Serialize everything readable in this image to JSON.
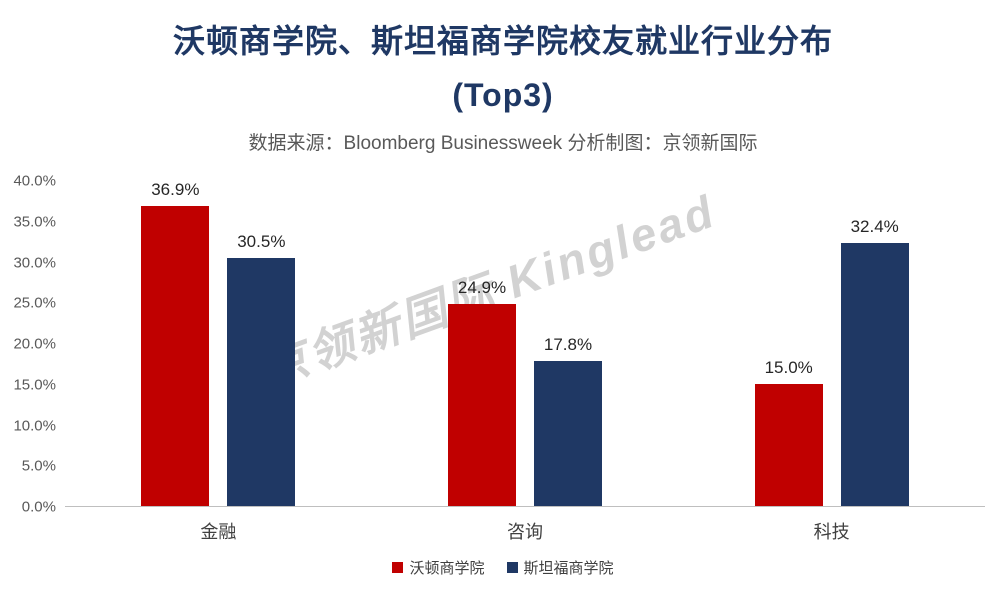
{
  "header": {
    "title_line1": "沃顿商学院、斯坦福商学院校友就业行业分布",
    "title_line2": "(Top3)",
    "subtitle": "数据来源：Bloomberg Businessweek 分析制图：京领新国际"
  },
  "watermark": "京领新国际 Kinglead",
  "colors": {
    "wharton_red": "#C00000",
    "stanford_navy": "#1F3864",
    "title_navy": "#1F3864",
    "subtitle_gray": "#595959",
    "axis_line_gray": "#BFBFBF",
    "watermark_gray": "#A6A6A6"
  },
  "chart_data": {
    "type": "bar",
    "title": "沃顿商学院、斯坦福商学院校友就业行业分布 (Top3)",
    "subtitle": "数据来源：Bloomberg Businessweek 分析制图：京领新国际",
    "categories": [
      "金融",
      "咨询",
      "科技"
    ],
    "series": [
      {
        "name": "沃顿商学院",
        "color": "#C00000",
        "values": [
          36.9,
          24.9,
          15.0
        ],
        "labels": [
          "36.9%",
          "24.9%",
          "15.0%"
        ]
      },
      {
        "name": "斯坦福商学院",
        "color": "#1F3864",
        "values": [
          30.5,
          17.8,
          32.4
        ],
        "labels": [
          "30.5%",
          "17.8%",
          "32.4%"
        ]
      }
    ],
    "xlabel": "",
    "ylabel": "",
    "ylim": [
      0,
      40
    ],
    "yticks": [
      "0.0%",
      "5.0%",
      "10.0%",
      "15.0%",
      "20.0%",
      "25.0%",
      "30.0%",
      "35.0%",
      "40.0%"
    ],
    "grid": false,
    "legend_position": "bottom"
  }
}
